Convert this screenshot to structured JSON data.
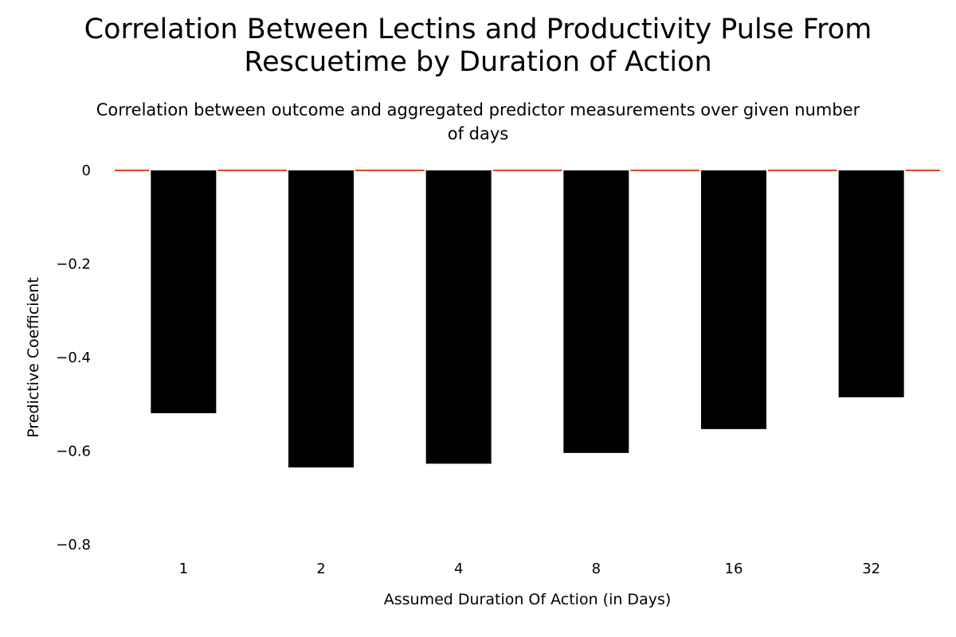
{
  "chart_data": {
    "type": "bar",
    "title_lines": [
      "Correlation Between Lectins and Productivity Pulse From",
      "Rescuetime by Duration of Action"
    ],
    "subtitle_lines": [
      "Correlation between outcome and aggregated predictor measurements over given number",
      "of days"
    ],
    "xlabel": "Assumed Duration Of Action (in Days)",
    "ylabel": "Predictive Coefficient",
    "categories": [
      "1",
      "2",
      "4",
      "8",
      "16",
      "32"
    ],
    "values": [
      -0.519,
      -0.635,
      -0.627,
      -0.604,
      -0.553,
      -0.485
    ],
    "ylim": [
      -0.8,
      0
    ],
    "y_ticks": [
      "0",
      "−0.2",
      "−0.4",
      "−0.6",
      "−0.8"
    ],
    "y_tick_values": [
      0,
      -0.2,
      -0.4,
      -0.6,
      -0.8
    ],
    "grid": false,
    "legend": "none",
    "colors": {
      "bar": "#000000",
      "zero_line": "#d9472b",
      "text": "#000000",
      "background": "#ffffff"
    }
  }
}
